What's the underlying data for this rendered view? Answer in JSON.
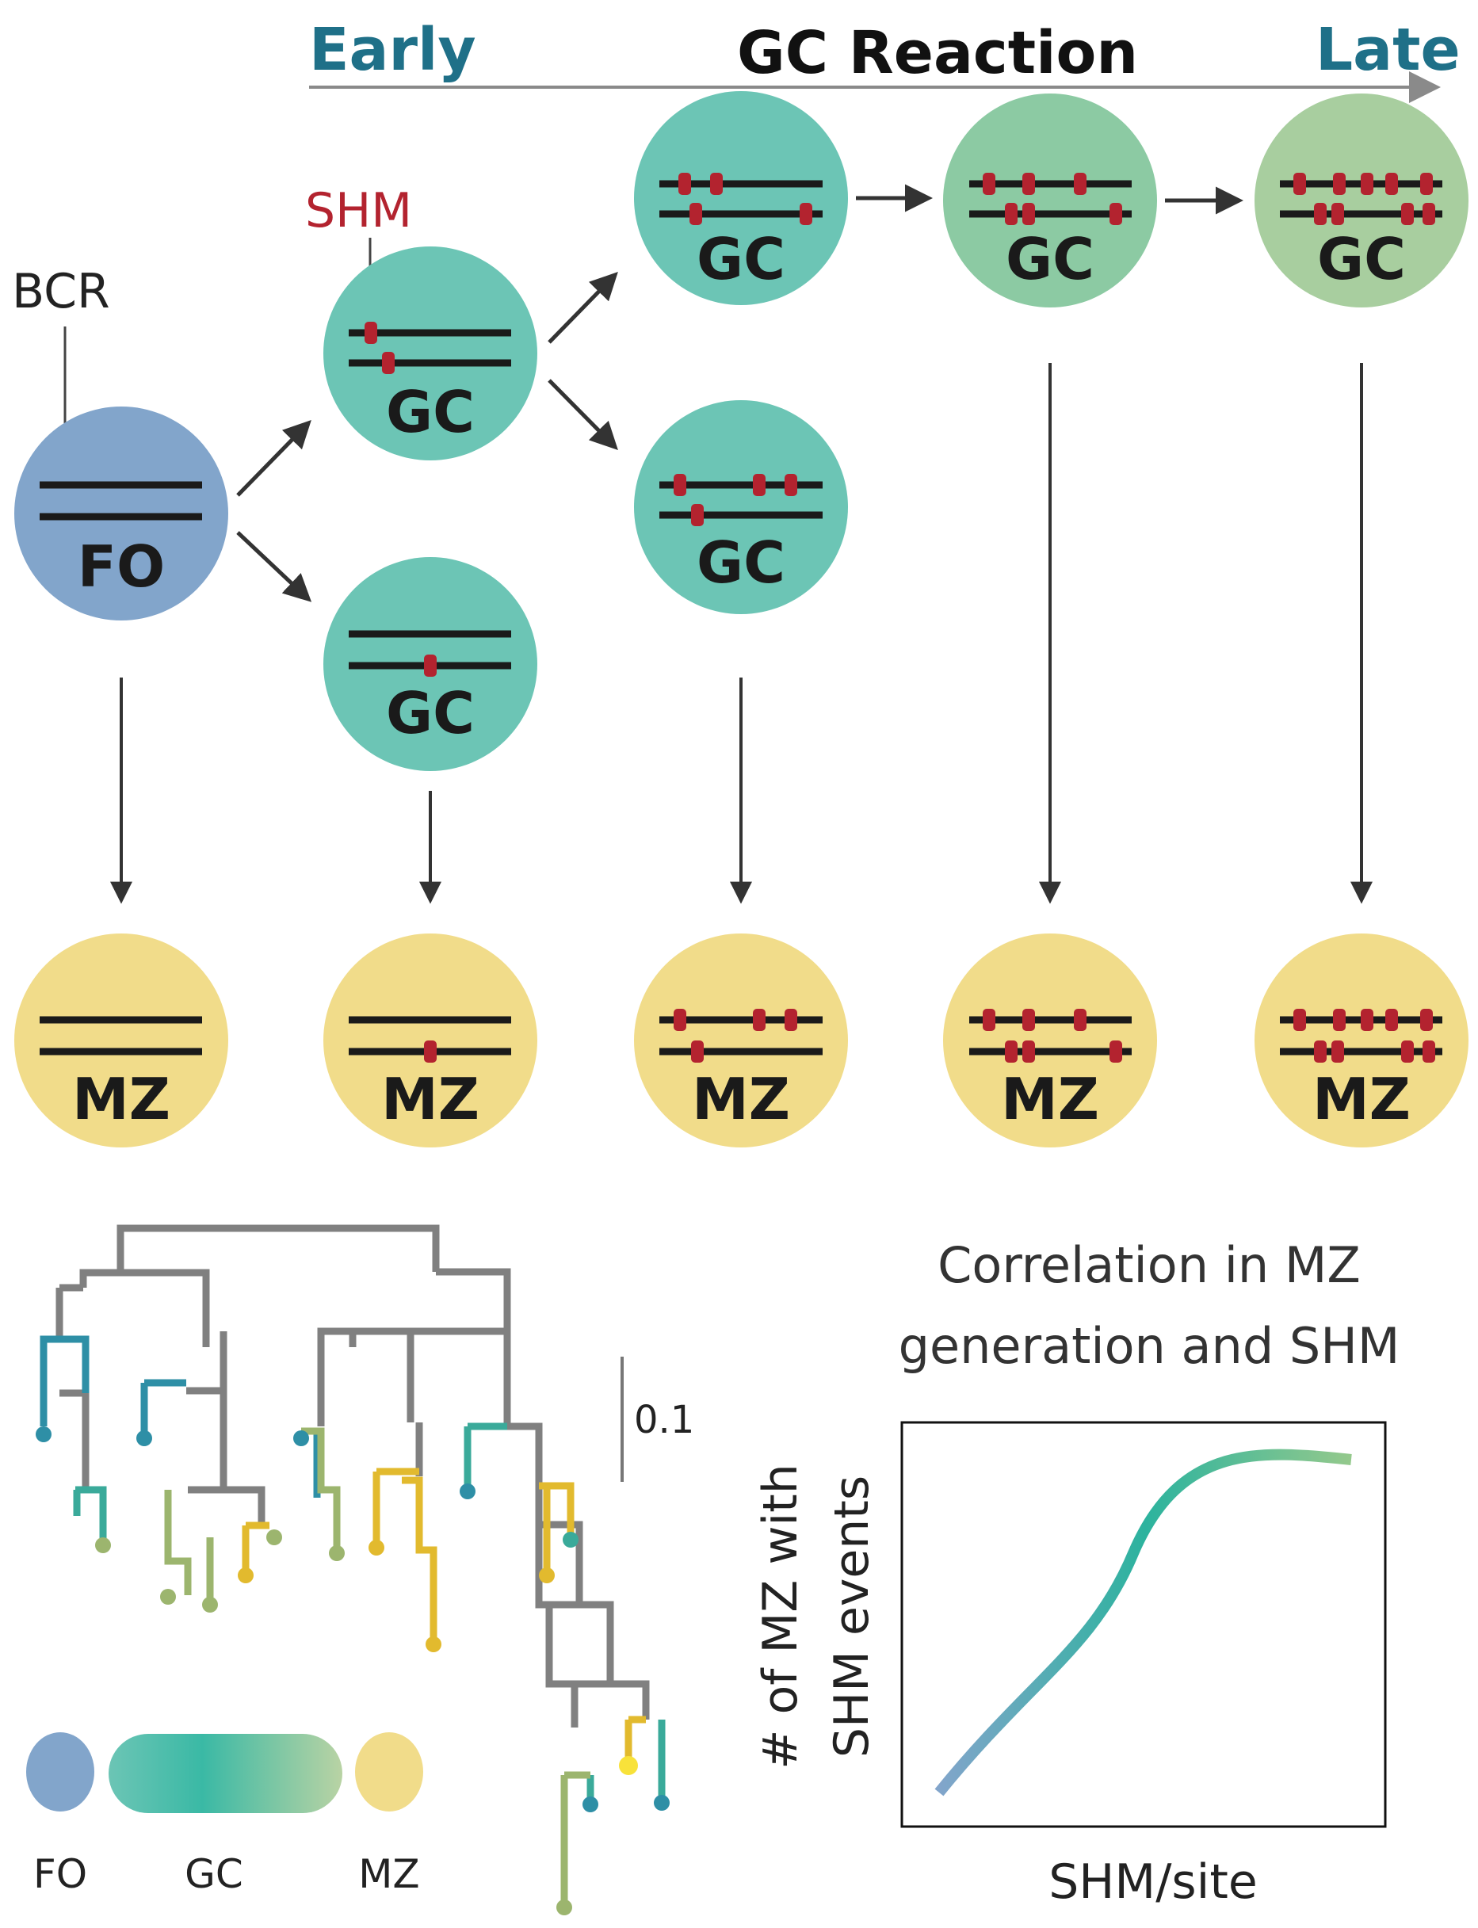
{
  "header": {
    "early": "Early",
    "reaction": "GC Reaction",
    "late": "Late"
  },
  "annotations": {
    "bcr": "BCR",
    "shm": "SHM"
  },
  "cells": {
    "fo": "FO",
    "gc": "GC",
    "mz": "MZ"
  },
  "scale_bar": "0.1",
  "legend": {
    "fo": "FO",
    "gc": "GC",
    "mz": "MZ"
  },
  "correlation": {
    "title_line1": "Correlation in MZ",
    "title_line2": "generation and SHM",
    "xlabel": "SHM/site",
    "ylabel_line1": "# of MZ with",
    "ylabel_line2": "SHM events"
  },
  "colors": {
    "fo": "#82a5cb",
    "gc": "#6cc5b5",
    "gc_mid": "#8ccaa3",
    "gc_late": "#a8ce9f",
    "mz": "#f1dc8a",
    "mutation": "#b3232f",
    "arrow": "#333333",
    "accent": "#1f7088",
    "tree_gray": "#808080"
  }
}
